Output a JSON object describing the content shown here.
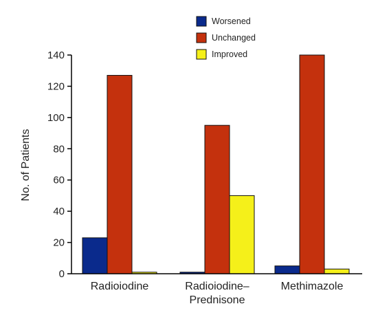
{
  "chart_data": {
    "type": "bar",
    "title": "",
    "xlabel": "",
    "ylabel": "No. of Patients",
    "ylim": [
      0,
      140
    ],
    "yticks": [
      0,
      20,
      40,
      60,
      80,
      100,
      120,
      140
    ],
    "grid": false,
    "legend_position": "top-center",
    "categories": [
      [
        "Radioiodine"
      ],
      [
        "Radioiodine–",
        "Prednisone"
      ],
      [
        "Methimazole"
      ]
    ],
    "series": [
      {
        "name": "Worsened",
        "color": "#0a2a8c",
        "values": [
          23,
          1,
          5
        ]
      },
      {
        "name": "Unchanged",
        "color": "#c4310d",
        "values": [
          127,
          95,
          140
        ]
      },
      {
        "name": "Improved",
        "color": "#f5f01a",
        "values": [
          1,
          50,
          3
        ]
      }
    ]
  }
}
